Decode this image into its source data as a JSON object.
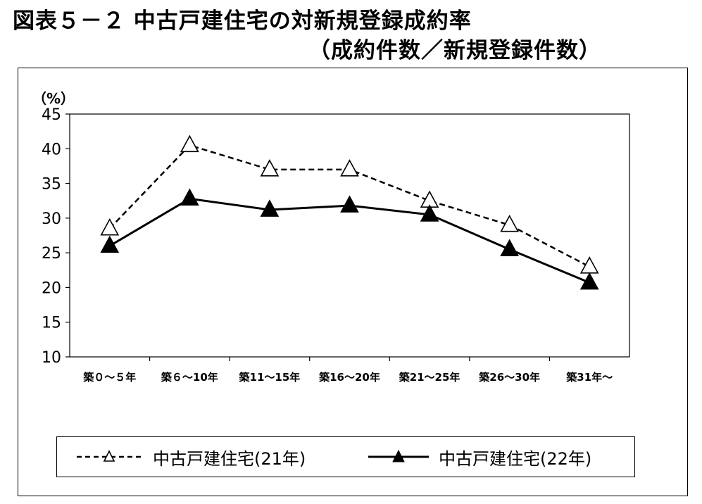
{
  "title": {
    "line1": "図表５－２ 中古戸建住宅の対新規登録成約率",
    "line2": "（成約件数／新規登録件数）"
  },
  "chart_data": {
    "type": "line",
    "unit_label": "（%）",
    "categories": [
      "築０～５年",
      "築６～10年",
      "築11～15年",
      "築16～20年",
      "築21～25年",
      "築26～30年",
      "築31年～"
    ],
    "ylim": [
      10,
      45
    ],
    "yticks": [
      10,
      15,
      20,
      25,
      30,
      35,
      40,
      45
    ],
    "grid": false,
    "legend_position": "bottom",
    "series": [
      {
        "name": "中古戸建住宅(21年)",
        "style": "dashed",
        "marker": "open-triangle",
        "values": [
          28.5,
          40.5,
          37.0,
          37.0,
          32.5,
          29.0,
          23.0
        ]
      },
      {
        "name": "中古戸建住宅(22年)",
        "style": "solid",
        "marker": "filled-triangle",
        "values": [
          26.0,
          32.8,
          31.2,
          31.8,
          30.5,
          25.5,
          20.7
        ]
      }
    ]
  }
}
